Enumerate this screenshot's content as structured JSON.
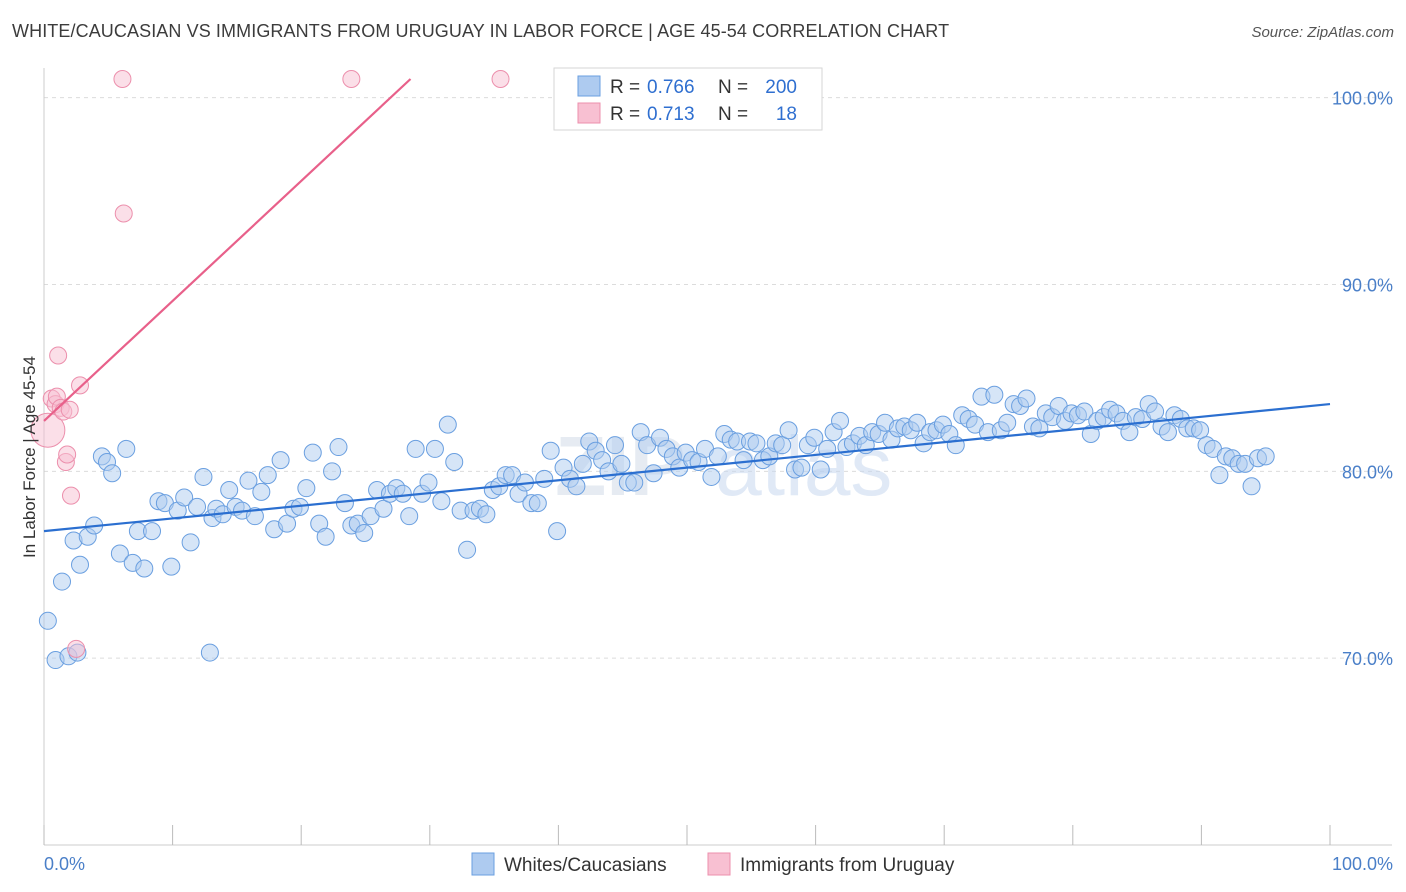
{
  "title": "WHITE/CAUCASIAN VS IMMIGRANTS FROM URUGUAY IN LABOR FORCE | AGE 45-54 CORRELATION CHART",
  "source": "Source: ZipAtlas.com",
  "watermark": {
    "part1": "ZIP",
    "part2": "atlas"
  },
  "colors": {
    "blue_fill": "#aecbf0",
    "blue_stroke": "#6a9fe0",
    "blue_line": "#2b6fd0",
    "pink_fill": "#f8c0d2",
    "pink_stroke": "#ec8fac",
    "pink_line": "#e8608a",
    "tick_text": "#4a7fc8",
    "grid": "#dcdcdc"
  },
  "legend": {
    "r_label": "R =",
    "n_label": "N =",
    "rows": [
      {
        "r": "0.766",
        "n": "200",
        "series": "blue"
      },
      {
        "r": "0.713",
        "n": "18",
        "series": "pink"
      }
    ]
  },
  "chart_data": {
    "type": "scatter",
    "title": "WHITE/CAUCASIAN VS IMMIGRANTS FROM URUGUAY IN LABOR FORCE | AGE 45-54 CORRELATION CHART",
    "xlabel": "",
    "ylabel": "In Labor Force | Age 45-54",
    "xlim": [
      0,
      100
    ],
    "ylim": [
      60.0,
      101.0
    ],
    "x_ticks": [
      {
        "value": 0,
        "label": "0.0%"
      },
      {
        "value": 100,
        "label": "100.0%"
      }
    ],
    "y_ticks": [
      {
        "value": 70,
        "label": "70.0%"
      },
      {
        "value": 80,
        "label": "80.0%"
      },
      {
        "value": 90,
        "label": "90.0%"
      },
      {
        "value": 100,
        "label": "100.0%"
      }
    ],
    "grid": true,
    "legend_position": "top-center",
    "series": [
      {
        "name": "Whites/Caucasians",
        "color": "blue",
        "trend": {
          "x": [
            0,
            100
          ],
          "y": [
            76.8,
            83.6
          ]
        },
        "points": [
          [
            0.3,
            72.0
          ],
          [
            0.9,
            69.9
          ],
          [
            1.4,
            74.1
          ],
          [
            1.9,
            70.1
          ],
          [
            2.3,
            76.3
          ],
          [
            2.6,
            70.3
          ],
          [
            2.8,
            75.0
          ],
          [
            3.4,
            76.5
          ],
          [
            3.9,
            77.1
          ],
          [
            4.5,
            80.8
          ],
          [
            4.9,
            80.5
          ],
          [
            5.3,
            79.9
          ],
          [
            5.9,
            75.6
          ],
          [
            6.4,
            81.2
          ],
          [
            6.9,
            75.1
          ],
          [
            7.3,
            76.8
          ],
          [
            7.8,
            74.8
          ],
          [
            8.4,
            76.8
          ],
          [
            8.9,
            78.4
          ],
          [
            9.4,
            78.3
          ],
          [
            9.9,
            74.9
          ],
          [
            10.4,
            77.9
          ],
          [
            10.9,
            78.6
          ],
          [
            11.4,
            76.2
          ],
          [
            11.9,
            78.1
          ],
          [
            12.4,
            79.7
          ],
          [
            12.9,
            70.3
          ],
          [
            13.1,
            77.5
          ],
          [
            13.4,
            78.0
          ],
          [
            13.9,
            77.7
          ],
          [
            14.4,
            79.0
          ],
          [
            14.9,
            78.1
          ],
          [
            15.4,
            77.9
          ],
          [
            15.9,
            79.5
          ],
          [
            16.4,
            77.6
          ],
          [
            16.9,
            78.9
          ],
          [
            17.4,
            79.8
          ],
          [
            17.9,
            76.9
          ],
          [
            18.4,
            80.6
          ],
          [
            18.9,
            77.2
          ],
          [
            19.4,
            78.0
          ],
          [
            19.9,
            78.1
          ],
          [
            20.4,
            79.1
          ],
          [
            20.9,
            81.0
          ],
          [
            21.4,
            77.2
          ],
          [
            21.9,
            76.5
          ],
          [
            22.4,
            80.0
          ],
          [
            22.9,
            81.3
          ],
          [
            23.4,
            78.3
          ],
          [
            23.9,
            77.1
          ],
          [
            24.4,
            77.2
          ],
          [
            24.9,
            76.7
          ],
          [
            25.4,
            77.6
          ],
          [
            25.9,
            79.0
          ],
          [
            26.4,
            78.0
          ],
          [
            26.9,
            78.8
          ],
          [
            27.4,
            79.1
          ],
          [
            27.9,
            78.8
          ],
          [
            28.4,
            77.6
          ],
          [
            28.9,
            81.2
          ],
          [
            29.4,
            78.8
          ],
          [
            29.9,
            79.4
          ],
          [
            30.4,
            81.2
          ],
          [
            30.9,
            78.4
          ],
          [
            31.4,
            82.5
          ],
          [
            31.9,
            80.5
          ],
          [
            32.4,
            77.9
          ],
          [
            32.9,
            75.8
          ],
          [
            33.4,
            77.9
          ],
          [
            33.9,
            78.0
          ],
          [
            34.4,
            77.7
          ],
          [
            34.9,
            79.0
          ],
          [
            35.4,
            79.2
          ],
          [
            35.9,
            79.8
          ],
          [
            36.4,
            79.8
          ],
          [
            36.9,
            78.8
          ],
          [
            37.4,
            79.4
          ],
          [
            37.9,
            78.3
          ],
          [
            38.4,
            78.3
          ],
          [
            38.9,
            79.6
          ],
          [
            39.4,
            81.1
          ],
          [
            39.9,
            76.8
          ],
          [
            40.4,
            80.2
          ],
          [
            40.9,
            79.6
          ],
          [
            41.4,
            79.2
          ],
          [
            41.9,
            80.4
          ],
          [
            42.4,
            81.6
          ],
          [
            42.9,
            81.1
          ],
          [
            43.4,
            80.6
          ],
          [
            43.9,
            80.0
          ],
          [
            44.4,
            81.4
          ],
          [
            44.9,
            80.4
          ],
          [
            45.4,
            79.4
          ],
          [
            45.9,
            79.4
          ],
          [
            46.4,
            82.1
          ],
          [
            46.9,
            81.4
          ],
          [
            47.4,
            79.9
          ],
          [
            47.9,
            81.8
          ],
          [
            48.4,
            81.2
          ],
          [
            48.9,
            80.8
          ],
          [
            49.4,
            80.2
          ],
          [
            49.9,
            81.0
          ],
          [
            50.4,
            80.6
          ],
          [
            50.9,
            80.5
          ],
          [
            51.4,
            81.2
          ],
          [
            51.9,
            79.7
          ],
          [
            52.4,
            80.8
          ],
          [
            52.9,
            82.0
          ],
          [
            53.4,
            81.7
          ],
          [
            53.9,
            81.6
          ],
          [
            54.4,
            80.6
          ],
          [
            54.9,
            81.6
          ],
          [
            55.4,
            81.5
          ],
          [
            55.9,
            80.6
          ],
          [
            56.4,
            80.8
          ],
          [
            56.9,
            81.5
          ],
          [
            57.4,
            81.4
          ],
          [
            57.9,
            82.2
          ],
          [
            58.4,
            80.1
          ],
          [
            58.9,
            80.2
          ],
          [
            59.4,
            81.4
          ],
          [
            59.9,
            81.8
          ],
          [
            60.4,
            80.1
          ],
          [
            60.9,
            81.2
          ],
          [
            61.4,
            82.1
          ],
          [
            61.9,
            82.7
          ],
          [
            62.4,
            81.3
          ],
          [
            62.9,
            81.5
          ],
          [
            63.4,
            81.9
          ],
          [
            63.9,
            81.4
          ],
          [
            64.4,
            82.1
          ],
          [
            64.9,
            82.0
          ],
          [
            65.4,
            82.6
          ],
          [
            65.9,
            81.7
          ],
          [
            66.4,
            82.3
          ],
          [
            66.9,
            82.4
          ],
          [
            67.4,
            82.2
          ],
          [
            67.9,
            82.6
          ],
          [
            68.4,
            81.5
          ],
          [
            68.9,
            82.1
          ],
          [
            69.4,
            82.2
          ],
          [
            69.9,
            82.5
          ],
          [
            70.4,
            82.0
          ],
          [
            70.9,
            81.4
          ],
          [
            71.4,
            83.0
          ],
          [
            71.9,
            82.8
          ],
          [
            72.4,
            82.5
          ],
          [
            72.9,
            84.0
          ],
          [
            73.4,
            82.1
          ],
          [
            73.9,
            84.1
          ],
          [
            74.4,
            82.2
          ],
          [
            74.9,
            82.6
          ],
          [
            75.4,
            83.6
          ],
          [
            75.9,
            83.5
          ],
          [
            76.4,
            83.9
          ],
          [
            76.9,
            82.4
          ],
          [
            77.4,
            82.3
          ],
          [
            77.9,
            83.1
          ],
          [
            78.4,
            82.9
          ],
          [
            78.9,
            83.5
          ],
          [
            79.4,
            82.7
          ],
          [
            79.9,
            83.1
          ],
          [
            80.4,
            83.0
          ],
          [
            80.9,
            83.2
          ],
          [
            81.4,
            82.0
          ],
          [
            81.9,
            82.7
          ],
          [
            82.4,
            82.9
          ],
          [
            82.9,
            83.3
          ],
          [
            83.4,
            83.1
          ],
          [
            83.9,
            82.7
          ],
          [
            84.4,
            82.1
          ],
          [
            84.9,
            82.9
          ],
          [
            85.4,
            82.8
          ],
          [
            85.9,
            83.6
          ],
          [
            86.4,
            83.2
          ],
          [
            86.9,
            82.4
          ],
          [
            87.4,
            82.1
          ],
          [
            87.9,
            83.0
          ],
          [
            88.4,
            82.8
          ],
          [
            88.9,
            82.3
          ],
          [
            89.4,
            82.3
          ],
          [
            89.9,
            82.2
          ],
          [
            90.4,
            81.4
          ],
          [
            90.9,
            81.2
          ],
          [
            91.4,
            79.8
          ],
          [
            91.9,
            80.8
          ],
          [
            92.4,
            80.7
          ],
          [
            92.9,
            80.4
          ],
          [
            93.4,
            80.4
          ],
          [
            93.9,
            79.2
          ],
          [
            94.4,
            80.7
          ],
          [
            95.0,
            80.8
          ]
        ]
      },
      {
        "name": "Immigrants from Uruguay",
        "color": "pink",
        "trend": {
          "x": [
            0,
            28.5
          ],
          "y": [
            82.7,
            101.0
          ]
        },
        "points": [
          [
            0.3,
            82.2
          ],
          [
            0.6,
            83.9
          ],
          [
            0.9,
            83.6
          ],
          [
            1.0,
            84.0
          ],
          [
            1.1,
            86.2
          ],
          [
            1.3,
            83.4
          ],
          [
            1.5,
            83.2
          ],
          [
            1.7,
            80.5
          ],
          [
            1.8,
            80.9
          ],
          [
            2.0,
            83.3
          ],
          [
            2.1,
            78.7
          ],
          [
            2.5,
            70.5
          ],
          [
            2.8,
            84.6
          ],
          [
            6.1,
            101.0
          ],
          [
            6.2,
            93.8
          ],
          [
            23.9,
            101.0
          ],
          [
            35.5,
            101.0
          ]
        ]
      }
    ]
  },
  "bottom_legend": [
    {
      "label": "Whites/Caucasians",
      "series": "blue"
    },
    {
      "label": "Immigrants from Uruguay",
      "series": "pink"
    }
  ]
}
